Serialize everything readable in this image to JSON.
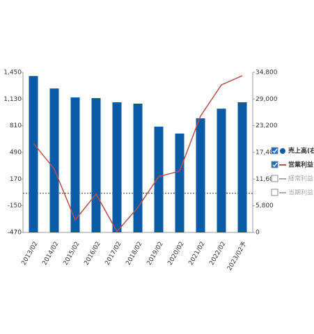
{
  "chart_data": {
    "type": "bar-line",
    "categories": [
      "2013/02",
      "2014/02",
      "2015/02",
      "2016/02",
      "2017/02",
      "2018/02",
      "2019/02",
      "2020/02",
      "2021/02",
      "2022/02",
      "2023/02予"
    ],
    "series": [
      {
        "name": "売上高(右軸)",
        "type": "bar",
        "axis": "y2",
        "color": "#0b5aa6",
        "checked": true,
        "values": [
          34000,
          31300,
          29350,
          29200,
          28300,
          28000,
          23000,
          21500,
          24800,
          26900,
          28300
        ]
      },
      {
        "name": "営業利益",
        "type": "line",
        "axis": "y",
        "color": "#b5514a",
        "checked": true,
        "values": [
          600,
          290,
          -320,
          -10,
          -460,
          -170,
          200,
          265,
          925,
          1300,
          1410
        ]
      }
    ],
    "inactive_series": [
      {
        "name": "経常利益",
        "checked": false
      },
      {
        "name": "当期利益",
        "checked": false
      }
    ],
    "ylim": [
      -470,
      1450
    ],
    "yticks": [
      -470,
      -150,
      170,
      490,
      810,
      {
        "value": 1130,
        "label": "1,130"
      },
      {
        "value": 1450,
        "label": "1,450"
      }
    ],
    "y2lim": [
      0,
      34800
    ],
    "y2ticks": [
      0,
      {
        "value": 5800,
        "label": "5,800"
      },
      {
        "value": 11600,
        "label": "11,600"
      },
      {
        "value": 17400,
        "label": "17,400"
      },
      {
        "value": 23200,
        "label": "23,200"
      },
      {
        "value": 29000,
        "label": "29,000"
      },
      {
        "value": 34800,
        "label": "34,800"
      }
    ],
    "zero_line": true
  }
}
